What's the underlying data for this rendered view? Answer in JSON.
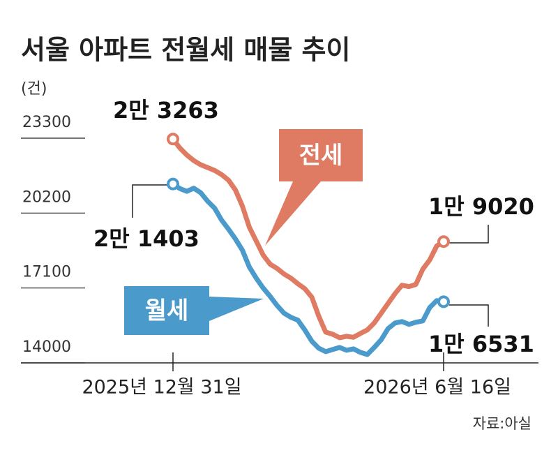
{
  "chart_data": {
    "type": "line",
    "title": "서울 아파트 전월세 매물 추이",
    "y_label": "(건)",
    "source": "자료:아실",
    "categories": [
      "2025년 12월 31일",
      null,
      null,
      null,
      null,
      null,
      null,
      null,
      null,
      null,
      null,
      null,
      null,
      null,
      null,
      null,
      null,
      null,
      null,
      null,
      null,
      null,
      null,
      null,
      null,
      null,
      null,
      null,
      null,
      null,
      null,
      null,
      null,
      null,
      null,
      null,
      null,
      null,
      null,
      "2026년 6월 16일"
    ],
    "series": [
      {
        "name": "전세",
        "color": "#df7a63",
        "values": [
          23263,
          22894,
          22605,
          22373,
          22199,
          22083,
          21967,
          21794,
          21562,
          21156,
          20490,
          19621,
          19041,
          18462,
          18085,
          17912,
          17680,
          17506,
          17274,
          17071,
          16724,
          15942,
          15275,
          15188,
          15044,
          15101,
          15060,
          15217,
          15362,
          15652,
          16057,
          16463,
          16869,
          17216,
          17158,
          17245,
          17883,
          18259,
          18839,
          19020
        ],
        "value_labels": [
          "2만 3263",
          null,
          null,
          null,
          null,
          null,
          null,
          null,
          null,
          null,
          null,
          null,
          null,
          null,
          null,
          null,
          null,
          null,
          null,
          null,
          null,
          null,
          null,
          null,
          null,
          null,
          null,
          null,
          null,
          null,
          null,
          null,
          null,
          null,
          null,
          null,
          null,
          null,
          null,
          "1만 9020"
        ]
      },
      {
        "name": "월세",
        "color": "#4a9acb",
        "values": [
          21403,
          21214,
          21098,
          21230,
          21040,
          20693,
          20403,
          19911,
          19534,
          19128,
          18665,
          17970,
          17506,
          17100,
          16753,
          16376,
          16057,
          15884,
          15768,
          15362,
          14899,
          14609,
          14464,
          14551,
          14638,
          14522,
          14580,
          14435,
          14348,
          14638,
          14957,
          15420,
          15652,
          15710,
          15594,
          15681,
          15739,
          16289,
          16579,
          16531
        ],
        "value_labels": [
          "2만 1403",
          null,
          null,
          null,
          null,
          null,
          null,
          null,
          null,
          null,
          null,
          null,
          null,
          null,
          null,
          null,
          null,
          null,
          null,
          null,
          null,
          null,
          null,
          null,
          null,
          null,
          null,
          null,
          null,
          null,
          null,
          null,
          null,
          null,
          null,
          null,
          null,
          null,
          null,
          "1만 6531"
        ]
      }
    ],
    "ylim": [
      14000,
      23300
    ],
    "yticks": [
      14000,
      17100,
      20200,
      23300
    ]
  }
}
